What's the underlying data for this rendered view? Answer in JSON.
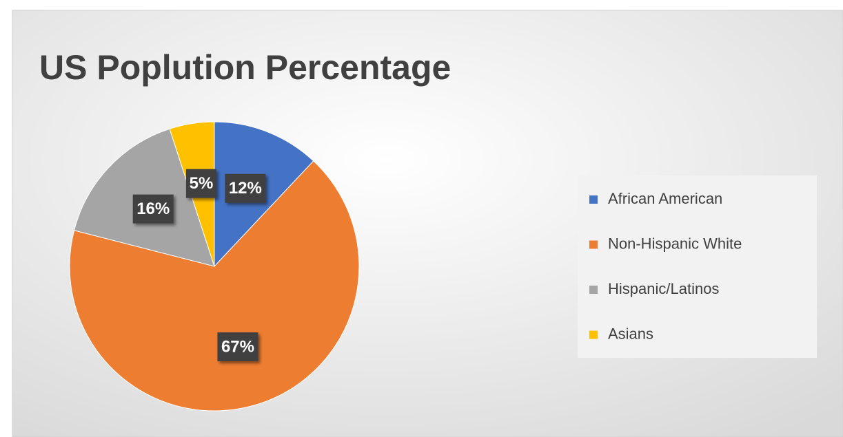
{
  "chart_data": {
    "type": "pie",
    "title": "US Poplution Percentage",
    "categories": [
      "African American",
      "Non-Hispanic White",
      "Hispanic/Latinos",
      "Asians"
    ],
    "values": [
      12,
      67,
      16,
      5
    ],
    "value_labels": [
      "12%",
      "67%",
      "16%",
      "5%"
    ],
    "colors": [
      "#4472c4",
      "#ed7d31",
      "#a5a5a5",
      "#ffc000"
    ],
    "legend": "right"
  }
}
